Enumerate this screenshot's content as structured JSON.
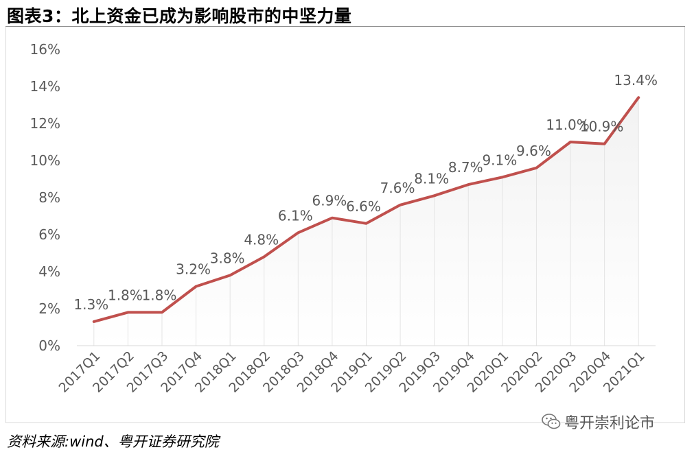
{
  "title": "图表3：北上资金已成为影响股市的中坚力量",
  "source": "资料来源:wind、粤开证券研究院",
  "watermark": "粤开崇利论市",
  "colors": {
    "line": "#c0504d",
    "label": "#595959",
    "axis": "#595959",
    "gradient_top": "#f2f2f2",
    "gradient_bottom": "#ffffff"
  },
  "icons": {
    "watermark": "wechat-icon"
  },
  "chart_data": {
    "type": "area",
    "categories": [
      "2017Q1",
      "2017Q2",
      "2017Q3",
      "2017Q4",
      "2018Q1",
      "2018Q2",
      "2018Q3",
      "2018Q4",
      "2019Q1",
      "2019Q2",
      "2019Q3",
      "2019Q4",
      "2020Q1",
      "2020Q2",
      "2020Q3",
      "2020Q4",
      "2021Q1"
    ],
    "values": [
      1.3,
      1.8,
      1.8,
      3.2,
      3.8,
      4.8,
      6.1,
      6.9,
      6.6,
      7.6,
      8.1,
      8.7,
      9.1,
      9.6,
      11.0,
      10.9,
      13.4
    ],
    "data_labels": [
      "1.3%",
      "1.8%",
      "1.8%",
      "3.2%",
      "3.8%",
      "4.8%",
      "6.1%",
      "6.9%",
      "6.6%",
      "7.6%",
      "8.1%",
      "8.7%",
      "9.1%",
      "9.6%",
      "11.0%",
      "10.9%",
      "13.4%"
    ],
    "y_ticks": [
      "0%",
      "2%",
      "4%",
      "6%",
      "8%",
      "10%",
      "12%",
      "14%",
      "16%"
    ],
    "ylim": [
      0,
      16
    ],
    "grid": false,
    "legend": "none",
    "title": "",
    "xlabel": "",
    "ylabel": ""
  }
}
